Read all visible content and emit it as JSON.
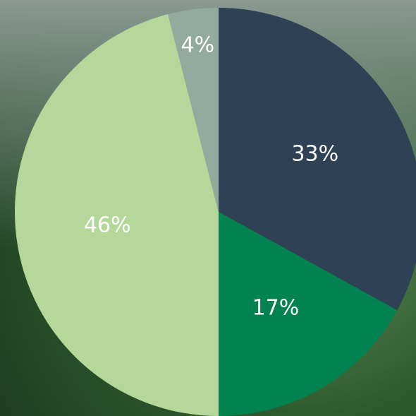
{
  "chart_data": {
    "type": "pie",
    "values": [
      33,
      17,
      46,
      4
    ],
    "value_labels": [
      "33%",
      "17%",
      "46%",
      "4%"
    ],
    "colors": [
      "#2e4155",
      "#008350",
      "#b5d89a",
      "#93aa9e"
    ]
  }
}
